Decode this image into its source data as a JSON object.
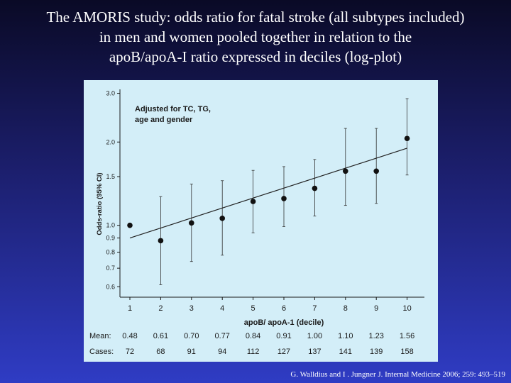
{
  "slide": {
    "title_lines": [
      "The AMORIS study: odds ratio for fatal stroke (all subtypes included)",
      "in men and women pooled together in relation to the",
      "apoB/apoA-I ratio expressed in deciles (log-plot)"
    ],
    "citation": "G. Walldius and  I . Jungner J. Internal Medicine 2006; 259: 493–519"
  },
  "chart_data": {
    "type": "scatter",
    "annotation_lines": [
      "Adjusted for TC, TG,",
      "age and gender"
    ],
    "xlabel": "apoB/ apoA-1 (decile)",
    "ylabel": "Odds-ratio (95% CI)",
    "y_scale": "log",
    "ylim": [
      0.55,
      3.1
    ],
    "y_ticks": [
      0.6,
      0.7,
      0.8,
      0.9,
      1.0,
      1.5,
      2.0,
      3.0
    ],
    "y_tick_labels": [
      "0.6",
      "0.7",
      "0.8",
      "0.9",
      "1.0",
      "1.5",
      "2.0",
      "3.0"
    ],
    "x": [
      1,
      2,
      3,
      4,
      5,
      6,
      7,
      8,
      9,
      10
    ],
    "x_tick_labels": [
      "1",
      "2",
      "3",
      "4",
      "5",
      "6",
      "7",
      "8",
      "9",
      "10"
    ],
    "odds_ratio": [
      1.0,
      0.88,
      1.02,
      1.06,
      1.22,
      1.25,
      1.36,
      1.57,
      1.57,
      2.06
    ],
    "ci_lower": [
      null,
      0.61,
      0.74,
      0.78,
      0.94,
      0.99,
      1.08,
      1.18,
      1.2,
      1.52
    ],
    "ci_upper": [
      null,
      1.27,
      1.41,
      1.45,
      1.58,
      1.63,
      1.73,
      2.24,
      2.24,
      2.87
    ],
    "trend_line": {
      "x": [
        1,
        10
      ],
      "y": [
        0.9,
        1.9
      ]
    },
    "grid": false,
    "table": {
      "rows": [
        {
          "label": "Mean:",
          "values": [
            "0.48",
            "0.61",
            "0.70",
            "0.77",
            "0.84",
            "0.91",
            "1.00",
            "1.10",
            "1.23",
            "1.56"
          ]
        },
        {
          "label": "Cases:",
          "values": [
            "72",
            "68",
            "91",
            "94",
            "112",
            "127",
            "137",
            "141",
            "139",
            "158"
          ]
        }
      ]
    }
  }
}
